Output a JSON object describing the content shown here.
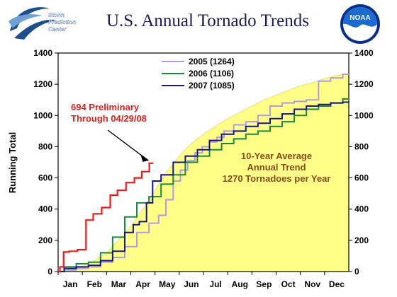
{
  "header": {
    "title": "U.S. Annual Tornado Trends",
    "spc_logo": {
      "icon": "spc-swirl-icon",
      "lines": [
        "Storm",
        "Prediction",
        "Center"
      ],
      "color": "#1f4e8c"
    },
    "noaa_logo": {
      "icon": "noaa-globe-icon",
      "text": "NOAA",
      "color": "#0a2e8a"
    }
  },
  "chart_data": {
    "type": "line",
    "title": "U.S. Annual Tornado Trends",
    "xlabel": "",
    "ylabel": "Running Total",
    "ylim": [
      0,
      1400
    ],
    "yticks": [
      "0",
      "200",
      "400",
      "600",
      "800",
      "1000",
      "1200",
      "1400"
    ],
    "xlim": [
      0,
      12
    ],
    "months": [
      "Jan",
      "Feb",
      "Mar",
      "Apr",
      "May",
      "Jun",
      "Jul",
      "Aug",
      "Sep",
      "Oct",
      "Nov",
      "Dec"
    ],
    "grid": false,
    "legend_position": "top-center",
    "average": {
      "color": "#ffff88",
      "edge": "#e8e070",
      "x": [
        0,
        0.5,
        1,
        1.5,
        2,
        2.5,
        3,
        3.5,
        4,
        4.5,
        5,
        5.5,
        6,
        6.5,
        7,
        7.5,
        8,
        8.5,
        9,
        9.5,
        10,
        10.5,
        11,
        11.5,
        12
      ],
      "y": [
        0,
        15,
        35,
        70,
        120,
        200,
        290,
        400,
        520,
        640,
        740,
        820,
        880,
        930,
        980,
        1020,
        1060,
        1100,
        1130,
        1160,
        1190,
        1210,
        1235,
        1255,
        1270
      ]
    },
    "series": [
      {
        "name": "2005 (1264)",
        "color": "#b49ae0",
        "x": [
          0,
          0.5,
          1,
          1.5,
          2,
          2.5,
          3,
          3.5,
          4,
          4.3,
          4.6,
          4.9,
          5.2,
          5.5,
          5.8,
          6.1,
          6.4,
          6.7,
          7,
          7.5,
          8,
          8.5,
          9,
          9.5,
          10,
          10.5,
          11,
          11.5,
          12
        ],
        "y": [
          0,
          10,
          20,
          30,
          60,
          90,
          160,
          250,
          310,
          360,
          460,
          580,
          650,
          710,
          760,
          800,
          830,
          860,
          900,
          940,
          960,
          1000,
          1060,
          1080,
          1090,
          1100,
          1220,
          1240,
          1264
        ]
      },
      {
        "name": "2006 (1106)",
        "color": "#1a8a3a",
        "x": [
          0,
          0.5,
          1,
          1.5,
          2,
          2.5,
          3,
          3.5,
          4,
          4.5,
          5,
          5.5,
          6,
          6.5,
          7,
          7.5,
          8,
          8.5,
          9,
          9.5,
          10,
          10.5,
          11,
          11.5,
          12
        ],
        "y": [
          0,
          30,
          50,
          60,
          120,
          220,
          350,
          440,
          480,
          560,
          620,
          700,
          740,
          780,
          820,
          850,
          880,
          900,
          930,
          960,
          1000,
          1040,
          1060,
          1080,
          1106
        ]
      },
      {
        "name": "2007 (1085)",
        "color": "#14148c",
        "x": [
          0,
          0.5,
          1,
          1.5,
          2,
          2.5,
          3,
          3.2,
          3.5,
          3.8,
          4,
          4.5,
          5,
          5.5,
          6,
          6.5,
          7,
          7.5,
          8,
          8.5,
          9,
          9.5,
          10,
          10.5,
          11,
          11.5,
          12
        ],
        "y": [
          0,
          20,
          30,
          40,
          70,
          130,
          250,
          300,
          320,
          440,
          580,
          620,
          700,
          740,
          780,
          840,
          880,
          900,
          930,
          950,
          980,
          1010,
          1040,
          1060,
          1070,
          1080,
          1085
        ]
      }
    ],
    "preliminary": {
      "color": "#e81e1e",
      "x": [
        0,
        0.15,
        0.3,
        0.6,
        1,
        1.3,
        1.6,
        2,
        2.3,
        2.6,
        3,
        3.3,
        3.6,
        3.93
      ],
      "y": [
        0,
        30,
        125,
        130,
        140,
        330,
        370,
        410,
        490,
        520,
        570,
        600,
        640,
        694
      ]
    },
    "annotations": {
      "preliminary": [
        "694 Preliminary",
        "Through 04/29/08"
      ],
      "average": [
        "10-Year Average",
        "Annual Trend",
        "1270 Tornadoes per Year"
      ]
    }
  }
}
